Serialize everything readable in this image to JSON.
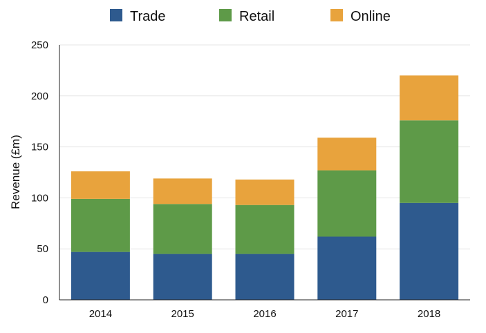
{
  "chart_data": {
    "type": "bar",
    "stacked": true,
    "title": "",
    "xlabel": "",
    "ylabel": "Revenue (£m)",
    "ylim": [
      0,
      250
    ],
    "yticks": [
      0,
      50,
      100,
      150,
      200,
      250
    ],
    "grid": true,
    "legend_position": "top-center",
    "categories": [
      "2014",
      "2015",
      "2016",
      "2017",
      "2018"
    ],
    "series": [
      {
        "name": "Trade",
        "color": "#2e5a8e",
        "values": [
          47,
          45,
          45,
          62,
          95
        ]
      },
      {
        "name": "Retail",
        "color": "#5e9a48",
        "values": [
          52,
          49,
          48,
          65,
          81
        ]
      },
      {
        "name": "Online",
        "color": "#e8a33d",
        "values": [
          27,
          25,
          25,
          32,
          44
        ]
      }
    ]
  }
}
